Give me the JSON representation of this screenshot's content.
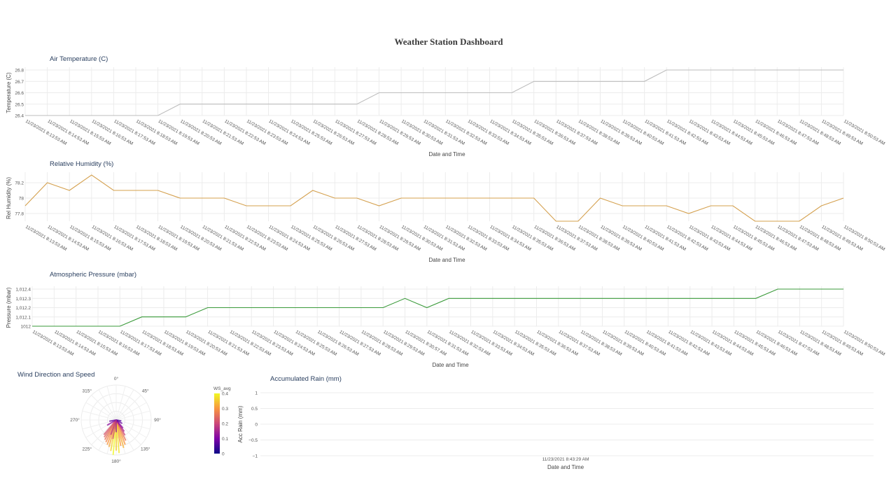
{
  "page_title": "Weather Station Dashboard",
  "chart_data": [
    {
      "type": "line",
      "title": "Air Temperature (C)",
      "xlabel": "Date and Time",
      "ylabel": "Temperature (C)",
      "ylim": [
        26.4,
        26.8
      ],
      "yticks": [
        "26.4",
        "26.5",
        "26.6",
        "26.7",
        "26.8"
      ],
      "grid": true,
      "color": "#bdbdbd",
      "x": [
        "11/23/2021 8:13:53 AM",
        "11/23/2021 8:14:53 AM",
        "11/23/2021 8:15:53 AM",
        "11/23/2021 8:16:53 AM",
        "11/23/2021 8:17:53 AM",
        "11/23/2021 8:18:53 AM",
        "11/23/2021 8:19:53 AM",
        "11/23/2021 8:20:53 AM",
        "11/23/2021 8:21:53 AM",
        "11/23/2021 8:22:53 AM",
        "11/23/2021 8:23:53 AM",
        "11/23/2021 8:24:53 AM",
        "11/23/2021 8:25:53 AM",
        "11/23/2021 8:26:53 AM",
        "11/23/2021 8:27:53 AM",
        "11/23/2021 8:28:53 AM",
        "11/23/2021 8:29:53 AM",
        "11/23/2021 8:30:53 AM",
        "11/23/2021 8:31:53 AM",
        "11/23/2021 8:32:53 AM",
        "11/23/2021 8:33:53 AM",
        "11/23/2021 8:34:53 AM",
        "11/23/2021 8:35:53 AM",
        "11/23/2021 8:36:53 AM",
        "11/23/2021 8:37:53 AM",
        "11/23/2021 8:38:53 AM",
        "11/23/2021 8:39:53 AM",
        "11/23/2021 8:40:53 AM",
        "11/23/2021 8:41:53 AM",
        "11/23/2021 8:42:53 AM",
        "11/23/2021 8:43:53 AM",
        "11/23/2021 8:44:53 AM",
        "11/23/2021 8:45:53 AM",
        "11/23/2021 8:46:53 AM",
        "11/23/2021 8:47:53 AM",
        "11/23/2021 8:48:53 AM",
        "11/23/2021 8:49:53 AM",
        "11/23/2021 8:50:53 AM"
      ],
      "y": [
        26.4,
        26.4,
        26.4,
        26.4,
        26.4,
        26.4,
        26.4,
        26.5,
        26.5,
        26.5,
        26.5,
        26.5,
        26.5,
        26.5,
        26.5,
        26.5,
        26.6,
        26.6,
        26.6,
        26.6,
        26.6,
        26.6,
        26.6,
        26.7,
        26.7,
        26.7,
        26.7,
        26.7,
        26.7,
        26.8,
        26.8,
        26.8,
        26.8,
        26.8,
        26.8,
        26.8,
        26.8,
        26.8
      ]
    },
    {
      "type": "line",
      "title": "Relative Humidity (%)",
      "xlabel": "Date and Time",
      "ylabel": "Rel Humidity (%)",
      "ylim": [
        77.7,
        78.3
      ],
      "yticks": [
        "77.8",
        "78",
        "78.2"
      ],
      "grid": true,
      "color": "#d4a04e",
      "x": [
        "11/23/2021 8:13:53 AM",
        "11/23/2021 8:14:53 AM",
        "11/23/2021 8:15:53 AM",
        "11/23/2021 8:16:53 AM",
        "11/23/2021 8:17:53 AM",
        "11/23/2021 8:18:53 AM",
        "11/23/2021 8:19:53 AM",
        "11/23/2021 8:20:53 AM",
        "11/23/2021 8:21:53 AM",
        "11/23/2021 8:22:53 AM",
        "11/23/2021 8:23:53 AM",
        "11/23/2021 8:24:53 AM",
        "11/23/2021 8:25:53 AM",
        "11/23/2021 8:26:53 AM",
        "11/23/2021 8:27:53 AM",
        "11/23/2021 8:28:53 AM",
        "11/23/2021 8:29:53 AM",
        "11/23/2021 8:30:53 AM",
        "11/23/2021 8:31:53 AM",
        "11/23/2021 8:32:53 AM",
        "11/23/2021 8:33:53 AM",
        "11/23/2021 8:34:53 AM",
        "11/23/2021 8:35:53 AM",
        "11/23/2021 8:36:53 AM",
        "11/23/2021 8:37:53 AM",
        "11/23/2021 8:38:53 AM",
        "11/23/2021 8:39:53 AM",
        "11/23/2021 8:40:53 AM",
        "11/23/2021 8:41:53 AM",
        "11/23/2021 8:42:53 AM",
        "11/23/2021 8:43:53 AM",
        "11/23/2021 8:44:53 AM",
        "11/23/2021 8:45:53 AM",
        "11/23/2021 8:46:53 AM",
        "11/23/2021 8:47:53 AM",
        "11/23/2021 8:48:53 AM",
        "11/23/2021 8:49:53 AM",
        "11/23/2021 8:50:53 AM"
      ],
      "y": [
        77.9,
        78.2,
        78.1,
        78.3,
        78.1,
        78.1,
        78.1,
        78.0,
        78.0,
        78.0,
        77.9,
        77.9,
        77.9,
        78.1,
        78.0,
        78.0,
        77.9,
        78.0,
        78.0,
        78.0,
        78.0,
        78.0,
        78.0,
        78.0,
        77.7,
        77.7,
        78.0,
        77.9,
        77.9,
        77.9,
        77.8,
        77.9,
        77.9,
        77.7,
        77.7,
        77.7,
        77.9,
        78.0
      ]
    },
    {
      "type": "line",
      "title": "Atmospheric Pressure (mbar)",
      "xlabel": "Date and Time",
      "ylabel": "Pressure (mbar)",
      "ylim": [
        1012.0,
        1012.4
      ],
      "yticks": [
        "1012",
        "1,012.1",
        "1,012.2",
        "1,012.3",
        "1,012.4"
      ],
      "grid": true,
      "color": "#3a9a3a",
      "x": [
        "11/23/2021 8:13:53 AM",
        "11/23/2021 8:14:53 AM",
        "11/23/2021 8:15:53 AM",
        "11/23/2021 8:16:53 AM",
        "11/23/2021 8:17:53 AM",
        "11/23/2021 8:18:53 AM",
        "11/23/2021 8:19:53 AM",
        "11/23/2021 8:20:53 AM",
        "11/23/2021 8:21:53 AM",
        "11/23/2021 8:22:53 AM",
        "11/23/2021 8:23:53 AM",
        "11/23/2021 8:24:53 AM",
        "11/23/2021 8:25:53 AM",
        "11/23/2021 8:26:53 AM",
        "11/23/2021 8:27:53 AM",
        "11/23/2021 8:28:53 AM",
        "11/23/2021 8:29:53 AM",
        "11/23/2021 8:30:57 AM",
        "11/23/2021 8:31:53 AM",
        "11/23/2021 8:32:53 AM",
        "11/23/2021 8:33:53 AM",
        "11/23/2021 8:34:53 AM",
        "11/23/2021 8:35:53 AM",
        "11/23/2021 8:36:53 AM",
        "11/23/2021 8:37:53 AM",
        "11/23/2021 8:38:53 AM",
        "11/23/2021 8:39:53 AM",
        "11/23/2021 8:40:53 AM",
        "11/23/2021 8:41:53 AM",
        "11/23/2021 8:42:53 AM",
        "11/23/2021 8:43:53 AM",
        "11/23/2021 8:44:53 AM",
        "11/23/2021 8:45:53 AM",
        "11/23/2021 8:46:53 AM",
        "11/23/2021 8:47:53 AM",
        "11/23/2021 8:48:53 AM",
        "11/23/2021 8:49:53 AM",
        "11/23/2021 8:50:53 AM"
      ],
      "y": [
        1012.0,
        1012.0,
        1012.0,
        1012.0,
        1012.0,
        1012.1,
        1012.1,
        1012.1,
        1012.2,
        1012.2,
        1012.2,
        1012.2,
        1012.2,
        1012.2,
        1012.2,
        1012.2,
        1012.2,
        1012.3,
        1012.2,
        1012.3,
        1012.3,
        1012.3,
        1012.3,
        1012.3,
        1012.3,
        1012.3,
        1012.3,
        1012.3,
        1012.3,
        1012.3,
        1012.3,
        1012.3,
        1012.3,
        1012.3,
        1012.4,
        1012.4,
        1012.4,
        1012.4
      ]
    },
    {
      "type": "scatter",
      "subtype": "polar-bar",
      "title": "Wind Direction and Speed",
      "angular_ticks": [
        "0°",
        "45°",
        "90°",
        "135°",
        "180°",
        "225°",
        "270°",
        "315°"
      ],
      "colorbar": {
        "title": "WS_avg",
        "ticks": [
          "0",
          "0.1",
          "0.2",
          "0.3",
          "0.4"
        ],
        "range": [
          0,
          0.4
        ]
      },
      "bars": [
        {
          "dir": 170,
          "speed": 0.3
        },
        {
          "dir": 175,
          "speed": 0.38
        },
        {
          "dir": 180,
          "speed": 0.35
        },
        {
          "dir": 185,
          "speed": 0.4
        },
        {
          "dir": 190,
          "speed": 0.36
        },
        {
          "dir": 195,
          "speed": 0.32
        },
        {
          "dir": 200,
          "speed": 0.3
        },
        {
          "dir": 205,
          "speed": 0.28
        },
        {
          "dir": 210,
          "speed": 0.26
        },
        {
          "dir": 215,
          "speed": 0.24
        },
        {
          "dir": 220,
          "speed": 0.22
        },
        {
          "dir": 160,
          "speed": 0.3
        },
        {
          "dir": 165,
          "speed": 0.33
        },
        {
          "dir": 155,
          "speed": 0.26
        },
        {
          "dir": 150,
          "speed": 0.2
        },
        {
          "dir": 145,
          "speed": 0.16
        },
        {
          "dir": 140,
          "speed": 0.12
        },
        {
          "dir": 120,
          "speed": 0.08
        },
        {
          "dir": 100,
          "speed": 0.06
        },
        {
          "dir": 240,
          "speed": 0.12
        },
        {
          "dir": 260,
          "speed": 0.08
        },
        {
          "dir": 200,
          "speed": 0.18
        },
        {
          "dir": 190,
          "speed": 0.22
        },
        {
          "dir": 180,
          "speed": 0.14
        }
      ]
    },
    {
      "type": "line",
      "title": "Accumulated Rain (mm)",
      "xlabel": "Date and Time",
      "ylabel": "Acc Rain (mm)",
      "ylim": [
        -1,
        1
      ],
      "yticks": [
        "−1",
        "−0.5",
        "0",
        "0.5",
        "1"
      ],
      "x": [
        "11/23/2021 8:43:29 AM"
      ],
      "y": [
        0
      ]
    }
  ]
}
